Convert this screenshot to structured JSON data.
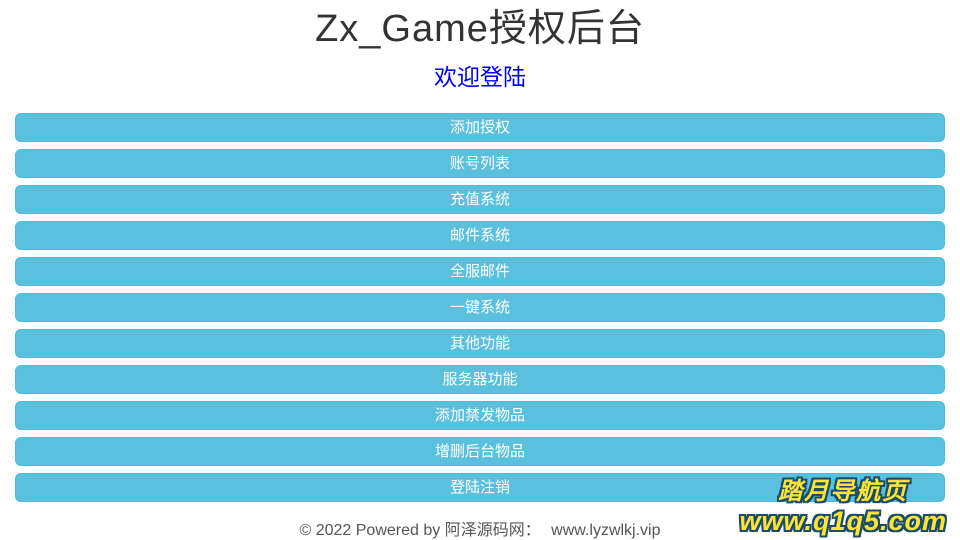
{
  "header": {
    "title": "Zx_Game授权后台",
    "welcome": "欢迎登陆"
  },
  "menu": {
    "items": [
      {
        "label": "添加授权"
      },
      {
        "label": "账号列表"
      },
      {
        "label": "充值系统"
      },
      {
        "label": "邮件系统"
      },
      {
        "label": "全服邮件"
      },
      {
        "label": "一键系统"
      },
      {
        "label": "其他功能"
      },
      {
        "label": "服务器功能"
      },
      {
        "label": "添加禁发物品"
      },
      {
        "label": "增删后台物品"
      },
      {
        "label": "登陆注销"
      }
    ]
  },
  "footer": {
    "copyright": "© 2022 Powered by 阿泽源码网：",
    "site": "www.lyzwlkj.vip"
  },
  "watermark": {
    "title": "踏月导航页",
    "url": "www.q1q5.com"
  },
  "colors": {
    "button_background": "#5bc0de",
    "button_text": "#ffffff",
    "welcome_link": "#0000ee",
    "title_text": "#333333",
    "footer_text": "#555555",
    "watermark_fill": "#ffe438",
    "watermark_outline": "#1b4e66"
  }
}
